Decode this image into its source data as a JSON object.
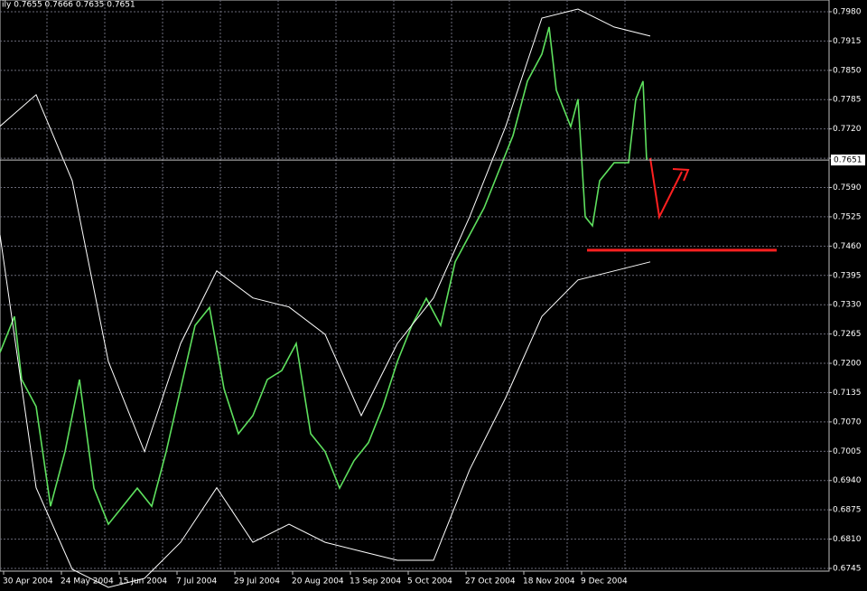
{
  "chart_data": {
    "type": "line",
    "title": "ily 0.7655 0.7666 0.7635 0.7651",
    "xlim": [
      0,
      229.5
    ],
    "ylim": [
      0.6739,
      0.8006
    ],
    "grid": true,
    "xticks": [
      {
        "value": 1,
        "label": "30 Apr 2004"
      },
      {
        "value": 17,
        "label": "24 May 2004"
      },
      {
        "value": 33,
        "label": "15 Jun 2004"
      },
      {
        "value": 49,
        "label": "7 Jul 2004"
      },
      {
        "value": 65,
        "label": "29 Jul 2004"
      },
      {
        "value": 81,
        "label": "20 Aug 2004"
      },
      {
        "value": 97,
        "label": "13 Sep 2004"
      },
      {
        "value": 113,
        "label": "5 Oct 2004"
      },
      {
        "value": 129,
        "label": "27 Oct 2004"
      },
      {
        "value": 145,
        "label": "18 Nov 2004"
      },
      {
        "value": 161,
        "label": "9 Dec 2004"
      }
    ],
    "yticks": [
      {
        "value": 0.798,
        "label": "0.7980"
      },
      0.7915,
      {
        "value": 0.785,
        "label": "0.7850"
      },
      0.7785,
      {
        "value": 0.772,
        "label": "0.7720"
      },
      0.7655,
      {
        "value": 0.759,
        "label": "0.7590"
      },
      0.7525,
      {
        "value": 0.746,
        "label": "0.7460"
      },
      0.7395,
      {
        "value": 0.733,
        "label": "0.7330"
      },
      0.7265,
      {
        "value": 0.72,
        "label": "0.7200"
      },
      0.7135,
      {
        "value": 0.707,
        "label": "0.7070"
      },
      0.7005,
      {
        "value": 0.694,
        "label": "0.6940"
      },
      0.6875,
      {
        "value": 0.681,
        "label": "0.6810"
      },
      0.6745
    ],
    "last_price": 0.7651,
    "hline": {
      "value": 0.7451,
      "x": [
        162.5,
        215
      ],
      "color": "#ff2020"
    },
    "series": [
      {
        "color": "#5ee05e",
        "x": [
          0,
          4,
          6,
          10,
          14,
          18,
          22,
          26,
          30,
          34,
          38,
          42,
          46,
          50,
          54,
          58,
          62,
          66,
          70,
          74,
          78,
          82,
          86,
          90,
          94,
          98,
          102,
          106,
          110,
          114,
          118,
          122,
          126,
          130,
          134,
          138,
          142,
          146,
          150,
          152,
          154,
          158,
          160,
          162,
          164,
          166,
          170,
          174,
          176,
          178,
          179
        ],
        "values": [
          0.7224,
          0.7304,
          0.7164,
          0.7104,
          0.6883,
          0.7004,
          0.7164,
          0.6923,
          0.6843,
          0.6883,
          0.6923,
          0.6883,
          0.7004,
          0.7144,
          0.7284,
          0.7324,
          0.7144,
          0.7044,
          0.7084,
          0.7164,
          0.7184,
          0.7244,
          0.7044,
          0.7004,
          0.6923,
          0.6984,
          0.7024,
          0.7104,
          0.7204,
          0.7284,
          0.7344,
          0.7284,
          0.7425,
          0.7485,
          0.7545,
          0.7625,
          0.7705,
          0.7826,
          0.7886,
          0.7946,
          0.7806,
          0.7725,
          0.7786,
          0.7525,
          0.7505,
          0.7605,
          0.7645,
          0.7645,
          0.7786,
          0.7826,
          0.7651
        ]
      },
      {
        "color": "#ffffff",
        "x": [
          0,
          10,
          20,
          30,
          40,
          50,
          60,
          70,
          80,
          90,
          100,
          110,
          120,
          130,
          140,
          150,
          160,
          170,
          180
        ],
        "values": [
          0.7726,
          0.7796,
          0.7605,
          0.7204,
          0.7004,
          0.7244,
          0.7405,
          0.7345,
          0.7325,
          0.7264,
          0.7084,
          0.7244,
          0.7345,
          0.7525,
          0.7726,
          0.7966,
          0.7986,
          0.7946,
          0.7926
        ]
      },
      {
        "color": "#ffffff",
        "x": [
          0,
          10,
          20,
          30,
          40,
          50,
          60,
          70,
          80,
          90,
          100,
          110,
          120,
          130,
          140,
          150,
          160,
          170,
          180
        ],
        "values": [
          0.7485,
          0.6924,
          0.6743,
          0.6703,
          0.6723,
          0.6803,
          0.6924,
          0.6803,
          0.6843,
          0.6803,
          0.6783,
          0.6763,
          0.6763,
          0.6964,
          0.7124,
          0.7304,
          0.7385,
          0.7405,
          0.7425
        ]
      }
    ]
  }
}
